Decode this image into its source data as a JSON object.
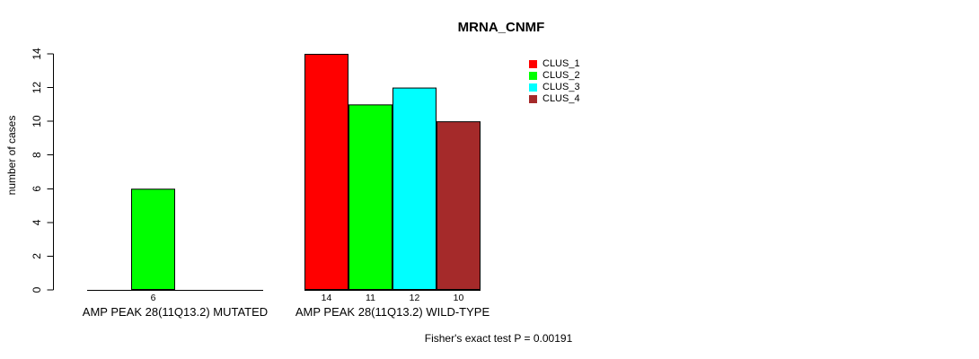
{
  "title": "MRNA_CNMF",
  "annotation": "Fisher's exact test P = 0.00191",
  "chart_data": {
    "type": "bar",
    "title": "MRNA_CNMF",
    "xlabel": "",
    "ylabel": "number of cases",
    "ylim": [
      0,
      14
    ],
    "yticks": [
      0,
      2,
      4,
      6,
      8,
      10,
      12,
      14
    ],
    "grid": false,
    "legend_position": "top-right",
    "categories": [
      "AMP PEAK 28(11Q13.2) MUTATED",
      "AMP PEAK 28(11Q13.2) WILD-TYPE"
    ],
    "series": [
      {
        "name": "CLUS_1",
        "color": "#ff0000",
        "values": [
          0,
          14
        ]
      },
      {
        "name": "CLUS_2",
        "color": "#00ff00",
        "values": [
          6,
          11
        ]
      },
      {
        "name": "CLUS_3",
        "color": "#00ffff",
        "values": [
          0,
          12
        ]
      },
      {
        "name": "CLUS_4",
        "color": "#a52a2a",
        "values": [
          0,
          10
        ]
      }
    ],
    "bar_value_labels": {
      "group_0": [
        "",
        "6",
        "",
        ""
      ],
      "group_1": [
        "14",
        "11",
        "12",
        "10"
      ]
    },
    "annotation": "Fisher's exact test P = 0.00191"
  }
}
